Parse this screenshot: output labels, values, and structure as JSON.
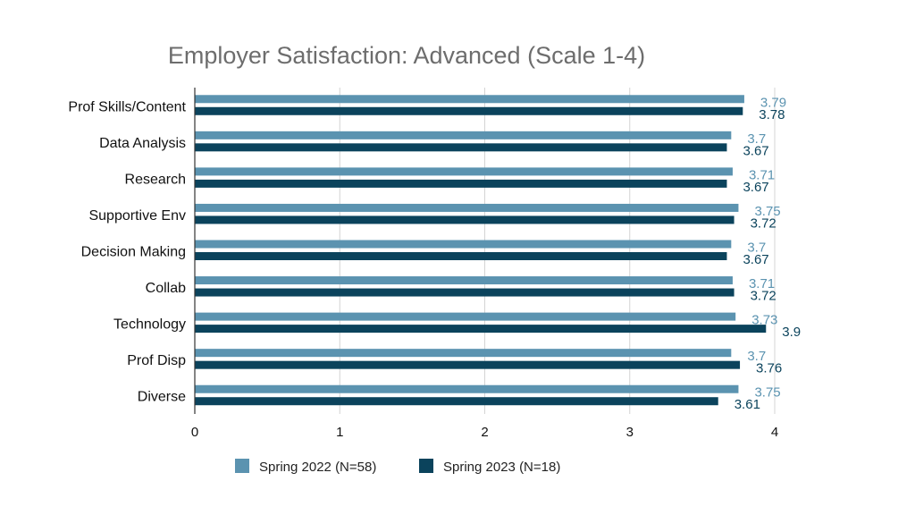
{
  "chart_data": {
    "type": "bar",
    "orientation": "horizontal",
    "title": "Employer Satisfaction: Advanced (Scale 1-4)",
    "xlabel": "",
    "ylabel": "",
    "categories": [
      "Prof Skills/Content",
      "Data Analysis",
      "Research",
      "Supportive Env",
      "Decision Making",
      "Collab",
      "Technology",
      "Prof Disp",
      "Diverse"
    ],
    "series": [
      {
        "name": "Spring 2022 (N=58)",
        "color": "#5b93b0",
        "values": [
          3.79,
          3.7,
          3.71,
          3.75,
          3.7,
          3.71,
          3.73,
          3.7,
          3.75
        ]
      },
      {
        "name": "Spring 2023 (N=18)",
        "color": "#0b435c",
        "values": [
          3.78,
          3.67,
          3.67,
          3.72,
          3.67,
          3.72,
          3.94,
          3.76,
          3.61
        ]
      }
    ],
    "data_label_text": [
      [
        "3.79",
        "3.7",
        "3.71",
        "3.75",
        "3.7",
        "3.71",
        "3.73",
        "3.7",
        "3.75"
      ],
      [
        "3.78",
        "3.67",
        "3.67",
        "3.72",
        "3.67",
        "3.72",
        "3.9",
        "3.76",
        "3.61"
      ]
    ],
    "xlim": [
      0,
      4
    ],
    "xticks": [
      "0",
      "1",
      "2",
      "3",
      "4"
    ],
    "grid": true,
    "legend_position": "bottom"
  }
}
